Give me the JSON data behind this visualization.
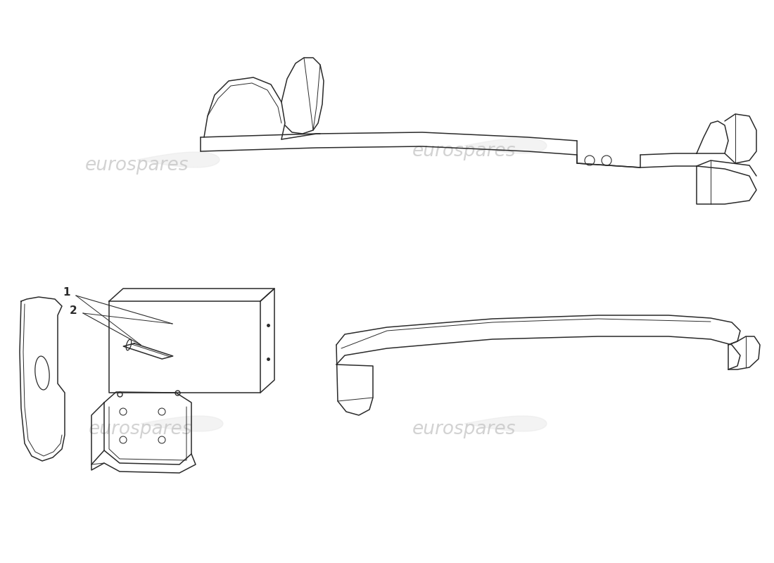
{
  "bg_color": "#ffffff",
  "lc": "#2a2a2a",
  "wc": "#c8c8c8",
  "lw": 1.1,
  "lt": 0.7,
  "fig_width": 11.0,
  "fig_height": 8.0,
  "dpi": 100,
  "wm_text": "eurospares"
}
